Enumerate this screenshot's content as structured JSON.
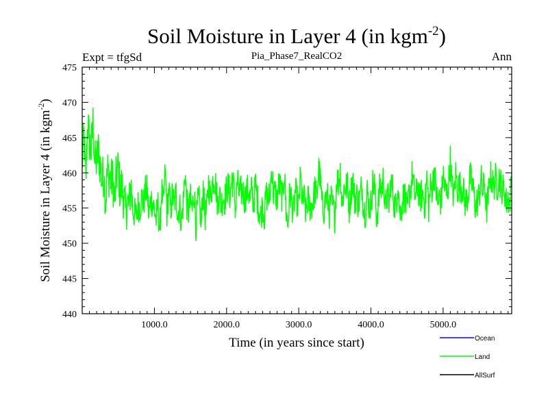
{
  "chart_data": {
    "type": "line",
    "title_main": "Soil Moisture in Layer 4 (in kgm",
    "title_sup": "-2",
    "title_close": ")",
    "subtitle": "Pia_Phase7_RealCO2",
    "left_label": "Expt = tfgSd",
    "right_label": "Ann",
    "xlabel": "Time (in years since start)",
    "ylabel_main": "Soil Moisture in Layer 4 (in kgm",
    "ylabel_sup": "-2",
    "ylabel_close": ")",
    "xlim": [
      0,
      5950
    ],
    "ylim": [
      440,
      475
    ],
    "x_ticks": [
      1000,
      2000,
      3000,
      4000,
      5000
    ],
    "x_tick_labels": [
      "1000.0",
      "2000.0",
      "3000.0",
      "4000.0",
      "5000.0"
    ],
    "y_ticks": [
      440,
      445,
      450,
      455,
      460,
      465,
      470,
      475
    ],
    "y_tick_labels": [
      "440",
      "445",
      "450",
      "455",
      "460",
      "465",
      "470",
      "475"
    ],
    "legend_position": "bottom-right",
    "series": [
      {
        "name": "Ocean",
        "color": "#0000ff",
        "x": [],
        "values": []
      },
      {
        "name": "Land",
        "color": "#00ff00",
        "x_start": 0,
        "x_step": 25,
        "values": [
          461.3,
          465.3,
          458.5,
          467.4,
          464.5,
          463.0,
          467.1,
          461.3,
          461.8,
          463.1,
          461.0,
          458.8,
          460.0,
          455.9,
          460.4,
          459.6,
          458.9,
          459.0,
          455.9,
          459.8,
          460.6,
          457.4,
          458.1,
          456.5,
          454.4,
          455.9,
          455.1,
          458.6,
          454.8,
          454.3,
          453.9,
          455.4,
          455.2,
          456.6,
          455.6,
          457.3,
          457.5,
          453.8,
          456.3,
          455.8,
          454.8,
          453.4,
          455.4,
          451.6,
          457.7,
          455.0,
          460.4,
          454.4,
          457.7,
          454.6,
          456.9,
          455.4,
          457.2,
          454.0,
          455.5,
          452.9,
          455.9,
          460.2,
          455.5,
          454.4,
          456.2,
          454.5,
          457.6,
          452.7,
          455.6,
          455.9,
          452.2,
          458.1,
          453.8,
          454.7,
          458.6,
          456.4,
          458.3,
          459.5,
          458.3,
          455.6,
          457.2,
          455.3,
          456.7,
          456.2,
          457.7,
          458.0,
          456.7,
          459.3,
          458.0,
          454.6,
          459.0,
          457.0,
          457.3,
          457.6,
          456.2,
          457.2,
          457.7,
          456.1,
          457.7,
          455.5,
          458.4,
          456.4,
          454.7,
          453.9,
          455.6,
          453.8,
          457.0,
          456.2,
          456.8,
          460.8,
          457.1,
          457.2,
          456.2,
          458.5,
          457.5,
          456.3,
          460.2,
          454.6,
          452.5,
          457.3,
          456.2,
          453.9,
          457.5,
          456.1,
          455.2,
          459.5,
          455.6,
          456.4,
          454.2,
          456.4,
          455.3,
          455.3,
          456.0,
          457.8,
          456.2,
          460.9,
          458.8,
          455.2,
          454.9,
          456.6,
          456.4,
          454.3,
          456.2,
          455.0,
          453.8,
          459.2,
          458.7,
          460.4,
          455.4,
          457.8,
          458.0,
          458.0,
          455.1,
          457.5,
          459.3,
          456.0,
          457.0,
          455.6,
          456.6,
          458.3,
          454.9,
          454.5,
          457.3,
          455.2,
          455.5,
          458.5,
          458.2,
          453.7,
          455.2,
          458.2,
          457.6,
          459.4,
          454.9,
          456.8,
          455.6,
          458.7,
          457.7,
          455.5,
          455.0,
          459.1,
          454.1,
          455.2,
          456.8,
          456.5,
          453.9,
          456.8,
          457.7,
          460.0,
          457.1,
          456.6,
          458.5,
          456.1,
          456.9,
          456.9,
          455.4,
          459.5,
          455.1,
          457.9,
          457.9,
          460.2,
          457.9,
          455.3,
          456.7,
          455.7,
          460.1,
          457.7,
          456.8,
          458.5,
          461.8,
          457.9,
          456.6,
          459.8,
          457.8,
          458.1,
          458.0,
          457.9,
          455.8,
          456.2,
          457.2,
          459.4,
          458.4,
          457.1,
          455.0,
          456.0,
          456.8,
          459.3,
          457.2,
          458.8,
          454.6,
          456.5,
          459.6,
          459.1,
          458.0,
          459.2,
          458.2,
          459.3,
          458.4,
          457.6,
          457.7,
          455.8,
          456.4,
          455.8,
          459.5,
          458.5
        ]
      },
      {
        "name": "AllSurf",
        "color": "#000000",
        "x": [],
        "values": []
      }
    ]
  }
}
